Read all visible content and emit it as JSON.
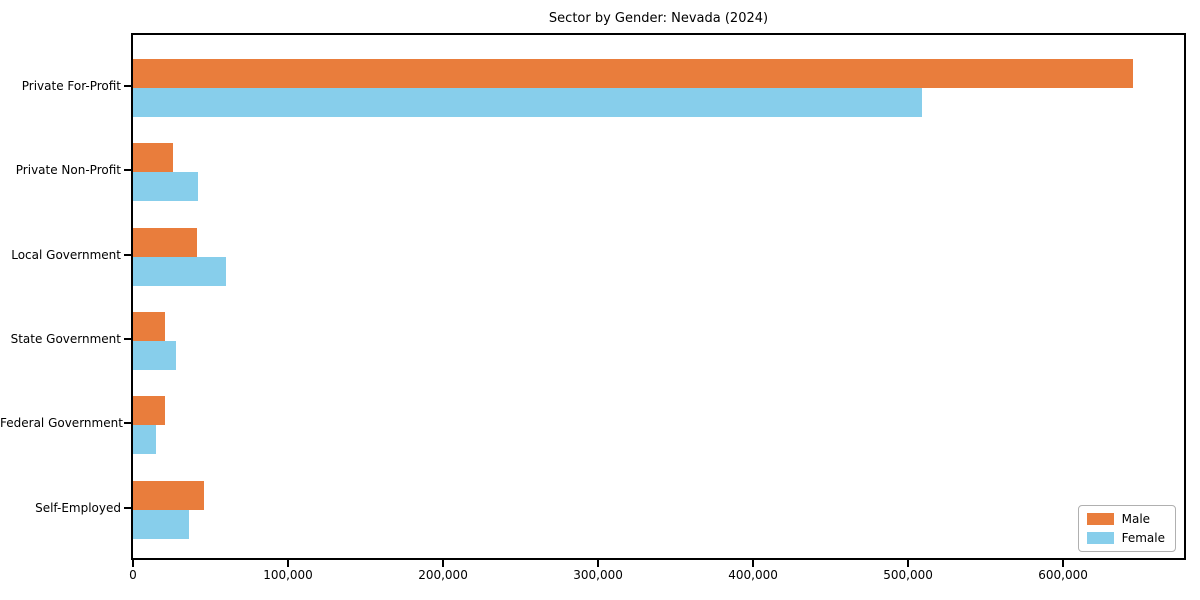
{
  "chart_data": {
    "type": "bar",
    "orientation": "horizontal",
    "title": "Sector by Gender: Nevada (2024)",
    "categories": [
      "Private For-Profit",
      "Private Non-Profit",
      "Local Government",
      "State Government",
      "Federal Government",
      "Self-Employed"
    ],
    "series": [
      {
        "name": "Male",
        "color": "#e97d3c",
        "values": [
          645000,
          26000,
          41500,
          20500,
          20500,
          46000
        ]
      },
      {
        "name": "Female",
        "color": "#87ceeb",
        "values": [
          509000,
          42000,
          60000,
          27500,
          15000,
          36000
        ]
      }
    ],
    "xlabel": "",
    "ylabel": "",
    "xlim": [
      0,
      678000
    ],
    "x_ticks": [
      0,
      100000,
      200000,
      300000,
      400000,
      500000,
      600000
    ],
    "x_tick_labels": [
      "0",
      "100,000",
      "200,000",
      "300,000",
      "400,000",
      "500,000",
      "600,000"
    ],
    "grid": false,
    "legend": {
      "position": "lower right"
    }
  }
}
